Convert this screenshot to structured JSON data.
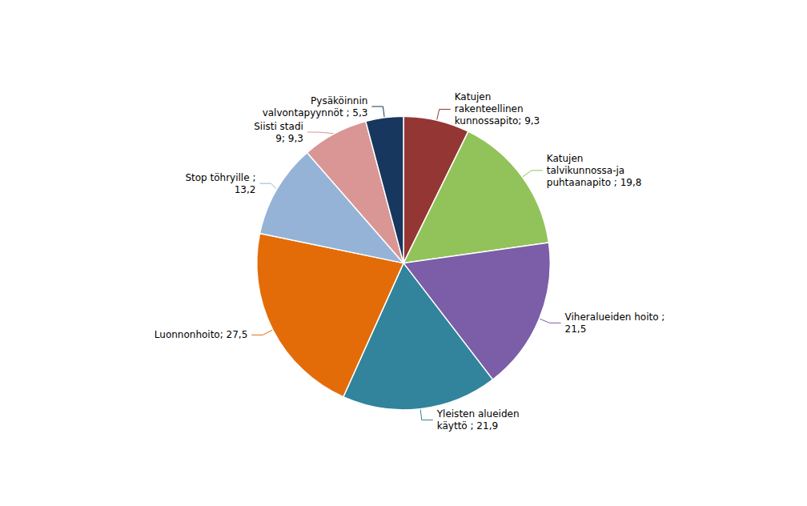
{
  "chart_data": {
    "type": "pie",
    "categories": [
      "Katujen\nrakenteellinen\nkunnossapito; 9,3",
      "Katujen\ntalvikunnossa-ja\npuhtaanapito ; 19,8",
      "Viheralueiden hoito ;\n21,5",
      "Yleisten alueiden\nkäyttö ; 21,9",
      "Luonnonhoito; 27,5",
      "Stop töhryille ;\n13,2",
      "Siisti stadi\n9; 9,3",
      "Pysäköinnin\nvalvontapyynnöt ; 5,3"
    ],
    "values": [
      9.3,
      19.8,
      21.5,
      21.9,
      27.5,
      13.2,
      9.3,
      5.3
    ],
    "colors": [
      "#943634",
      "#92C35A",
      "#7B5EA7",
      "#31849B",
      "#E36C09",
      "#95B3D7",
      "#D99694",
      "#17375E"
    ]
  }
}
